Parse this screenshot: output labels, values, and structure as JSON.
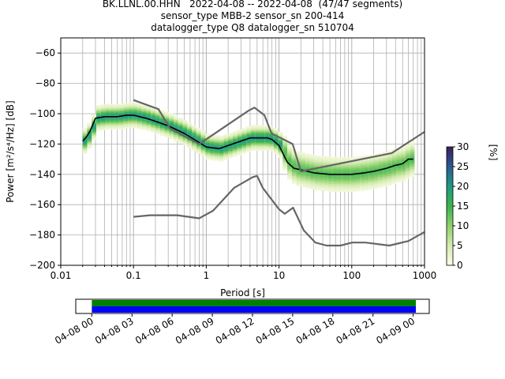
{
  "title_lines": [
    "BK.LLNL.00.HHN   2022-04-08 -- 2022-04-08  (47/47 segments)",
    "sensor_type MBB-2 sensor_sn 200-414",
    "datalogger_type Q8 datalogger_sn 510704"
  ],
  "chart_data": [
    {
      "type": "heatmap",
      "name": "ppsd",
      "xlabel": "Period [s]",
      "ylabel": "Power [m²/s⁴/Hz] [dB]",
      "xscale": "log",
      "xlim": [
        0.01,
        1000
      ],
      "ylim": [
        -200,
        -50
      ],
      "x_ticks": [
        0.01,
        0.1,
        1,
        10,
        100,
        1000
      ],
      "x_tick_labels": [
        "0.01",
        "0.1",
        "1",
        "10",
        "100",
        "1000"
      ],
      "y_ticks": [
        -200,
        -180,
        -160,
        -140,
        -120,
        -100,
        -80,
        -60
      ],
      "y_tick_labels": [
        "−200",
        "−180",
        "−160",
        "−140",
        "−120",
        "−100",
        "−80",
        "−60"
      ],
      "grid": true,
      "colorbar": {
        "label": "[%]",
        "range": [
          0,
          30
        ],
        "ticks": [
          0,
          5,
          10,
          15,
          20,
          25,
          30
        ],
        "tick_labels": [
          "0",
          "5",
          "10",
          "15",
          "20",
          "25",
          "30"
        ],
        "colors": [
          "#fdfde8",
          "#d4ebb0",
          "#8fd16a",
          "#3cb44e",
          "#1f9a7f",
          "#2c5a93",
          "#3b1f5e"
        ]
      },
      "series": [
        {
          "style": "median",
          "color": "#000000",
          "x": [
            0.02,
            0.022,
            0.025,
            0.03,
            0.04,
            0.06,
            0.08,
            0.1,
            0.15,
            0.2,
            0.3,
            0.5,
            0.8,
            1.0,
            1.5,
            2,
            3,
            4,
            5,
            6,
            7,
            8,
            10,
            13,
            16,
            20,
            30,
            50,
            80,
            100,
            150,
            200,
            300,
            400,
            500,
            600,
            700
          ],
          "y": [
            -118,
            -116,
            -112,
            -103,
            -102,
            -102,
            -101,
            -101,
            -103,
            -105,
            -108,
            -113,
            -119,
            -122,
            -123,
            -121,
            -118,
            -116,
            -116,
            -116,
            -116,
            -117,
            -121,
            -132,
            -136,
            -137,
            -139,
            -140,
            -140,
            -140,
            -139,
            -138,
            -136,
            -134,
            -133,
            -130,
            -130
          ]
        },
        {
          "style": "nhnm",
          "color": "#666666",
          "x": [
            0.1,
            0.22,
            0.32,
            0.8,
            3.8,
            4.6,
            6.3,
            7.9,
            15.4,
            20,
            354.8,
            1000
          ],
          "y": [
            -91,
            -97,
            -110,
            -120,
            -98,
            -96,
            -101,
            -113,
            -120,
            -138,
            -126,
            -112
          ]
        },
        {
          "style": "nlnm",
          "color": "#666666",
          "x": [
            0.1,
            0.17,
            0.4,
            0.8,
            1.24,
            2.4,
            4.3,
            5,
            6,
            10,
            12,
            15.6,
            21.9,
            31.6,
            45,
            70,
            101,
            154,
            328,
            600,
            1000
          ],
          "y": [
            -168,
            -167,
            -167,
            -169,
            -164,
            -149,
            -142,
            -141,
            -149,
            -163,
            -166,
            -162,
            -177,
            -185,
            -187,
            -187,
            -185,
            -185,
            -187,
            -184,
            -178
          ]
        }
      ]
    },
    {
      "type": "timeline",
      "name": "data-coverage",
      "x_tick_labels": [
        "04-08 00",
        "04-08 03",
        "04-08 06",
        "04-08 09",
        "04-08 12",
        "04-08 15",
        "04-08 18",
        "04-08 21",
        "04-09 00"
      ],
      "x_ticks_hours": [
        0,
        3,
        6,
        9,
        12,
        15,
        18,
        21,
        24
      ],
      "xlim_hours": [
        -1.2,
        25.2
      ],
      "bars": [
        {
          "name": "used",
          "color": "#008000",
          "start_hour": 0,
          "end_hour": 24.2
        },
        {
          "name": "available",
          "color": "#0000ff",
          "start_hour": 0,
          "end_hour": 24.2
        }
      ]
    }
  ]
}
